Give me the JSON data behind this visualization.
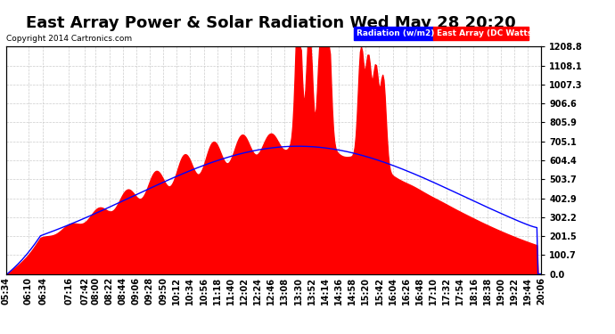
{
  "title": "East Array Power & Solar Radiation Wed May 28 20:20",
  "copyright": "Copyright 2014 Cartronics.com",
  "legend_labels": [
    "Radiation (w/m2)",
    "East Array (DC Watts)"
  ],
  "legend_colors": [
    "blue",
    "red"
  ],
  "ylabel_right": "",
  "yticks": [
    0.0,
    100.7,
    201.5,
    302.2,
    402.9,
    503.7,
    604.4,
    705.1,
    805.9,
    906.6,
    1007.3,
    1108.1,
    1208.8
  ],
  "ymax": 1208.8,
  "ymin": 0.0,
  "background_color": "#ffffff",
  "plot_background": "#ffffff",
  "grid_color": "#cccccc",
  "fill_color": "red",
  "line_color": "blue",
  "title_fontsize": 13,
  "tick_fontsize": 7,
  "n_points": 180,
  "x_start": "05:34",
  "x_end": "20:06",
  "xtick_labels": [
    "05:34",
    "06:10",
    "06:34",
    "07:16",
    "07:42",
    "08:00",
    "08:22",
    "08:44",
    "09:06",
    "09:28",
    "09:50",
    "10:12",
    "10:34",
    "10:56",
    "11:18",
    "11:40",
    "12:02",
    "12:24",
    "12:46",
    "13:08",
    "13:30",
    "13:52",
    "14:14",
    "14:36",
    "14:58",
    "15:20",
    "15:42",
    "16:04",
    "16:26",
    "16:48",
    "17:10",
    "17:32",
    "17:54",
    "18:16",
    "18:38",
    "19:00",
    "19:22",
    "19:44",
    "20:06"
  ]
}
